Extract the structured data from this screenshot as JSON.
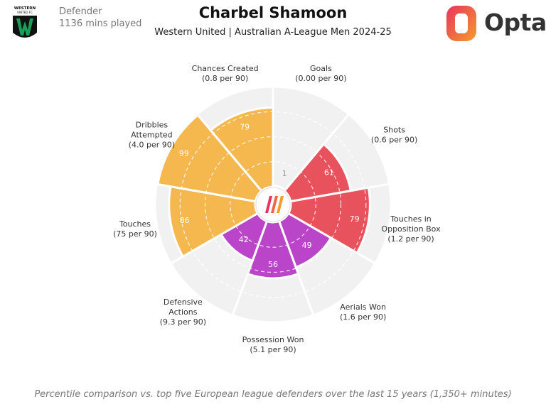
{
  "header": {
    "position": "Defender",
    "minutes": "1136 mins played",
    "player_name": "Charbel Shamoon",
    "subtitle": "Western United | Australian A-League Men 2024-25",
    "club_logo_text": "WESTERN UNITED FC",
    "brand": "Opta"
  },
  "colors": {
    "attacking": "#e8525d",
    "possession": "#f4b84e",
    "defending": "#bb45c9",
    "background_wedge": "#f1f1f1",
    "club_green": "#18a058",
    "brand_gradient_start": "#e8335f",
    "brand_gradient_end": "#f59b2b"
  },
  "chart_data": {
    "type": "polar-bar",
    "title": "Charbel Shamoon",
    "value_scale": "percentile",
    "rlim": [
      0,
      100
    ],
    "metrics": [
      {
        "name": "Goals",
        "per90": "(0.00 per 90)",
        "percentile": 1,
        "group": "attacking"
      },
      {
        "name": "Shots",
        "per90": "(0.6 per 90)",
        "percentile": 61,
        "group": "attacking"
      },
      {
        "name": "Touches in Opposition Box",
        "name_lines": [
          "Touches in",
          "Opposition Box"
        ],
        "per90": "(1.2 per 90)",
        "percentile": 79,
        "group": "attacking"
      },
      {
        "name": "Aerials Won",
        "per90": "(1.6 per 90)",
        "percentile": 49,
        "group": "defending"
      },
      {
        "name": "Possession Won",
        "per90": "(5.1 per 90)",
        "percentile": 56,
        "group": "defending"
      },
      {
        "name": "Defensive Actions",
        "name_lines": [
          "Defensive",
          "Actions"
        ],
        "per90": "(9.3 per 90)",
        "percentile": 42,
        "group": "defending"
      },
      {
        "name": "Touches",
        "per90": "(75 per 90)",
        "percentile": 86,
        "group": "possession"
      },
      {
        "name": "Dribbles Attempted",
        "name_lines": [
          "Dribbles",
          "Attempted"
        ],
        "per90": "(4.0 per 90)",
        "percentile": 99,
        "group": "possession"
      },
      {
        "name": "Chances Created",
        "per90": "(0.8 per 90)",
        "percentile": 79,
        "group": "possession"
      }
    ]
  },
  "footnote": "Percentile comparison vs. top five European league defenders over the last 15 years (1,350+ minutes)"
}
